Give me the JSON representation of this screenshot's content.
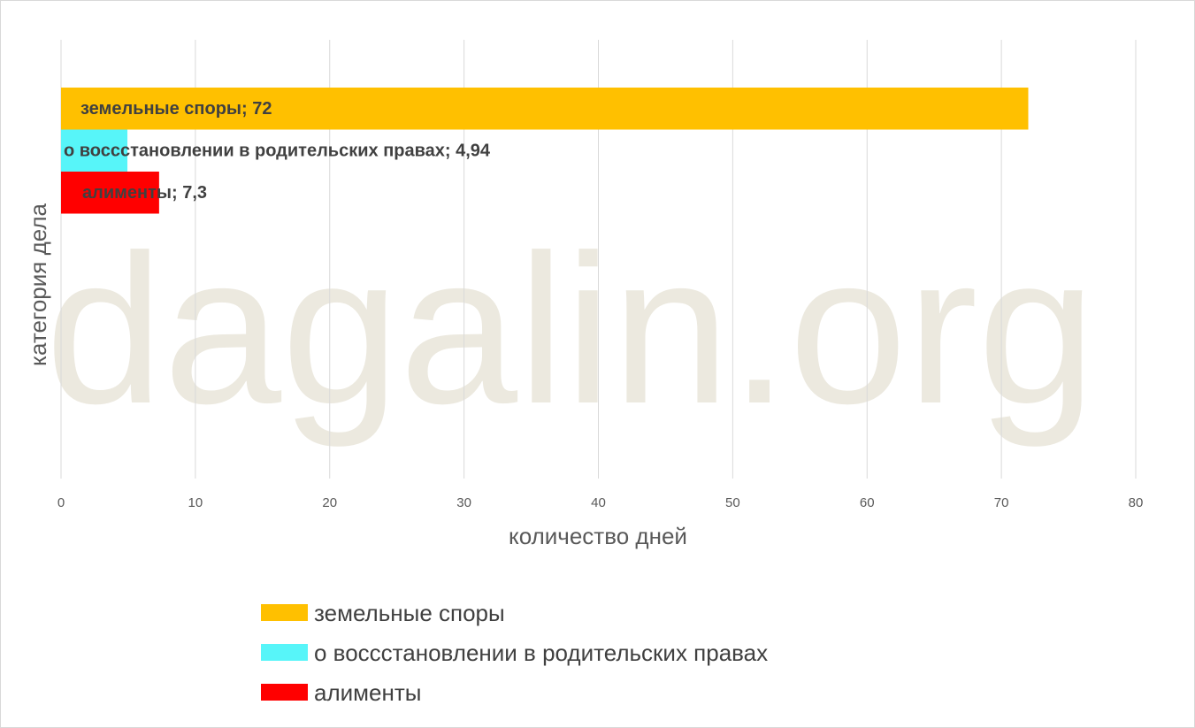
{
  "watermark": "dagalin.org",
  "chart_data": {
    "type": "bar",
    "orientation": "horizontal",
    "xlabel": "количество дней",
    "ylabel": "категория дела",
    "xlim": [
      0,
      80
    ],
    "xticks": [
      0,
      10,
      20,
      30,
      40,
      50,
      60,
      70,
      80
    ],
    "grid": true,
    "legend_position": "bottom",
    "series": [
      {
        "name": "земельные споры",
        "value": 72,
        "label": "земельные споры; 72",
        "color": "#FFC000"
      },
      {
        "name": "о воссстановлении в родительских правах",
        "value": 4.94,
        "label": "о воссстановлении в родительских правах; 4,94",
        "color": "#57F5F9"
      },
      {
        "name": "алименты",
        "value": 7.3,
        "label": "алименты; 7,3",
        "color": "#FF0000"
      }
    ]
  }
}
